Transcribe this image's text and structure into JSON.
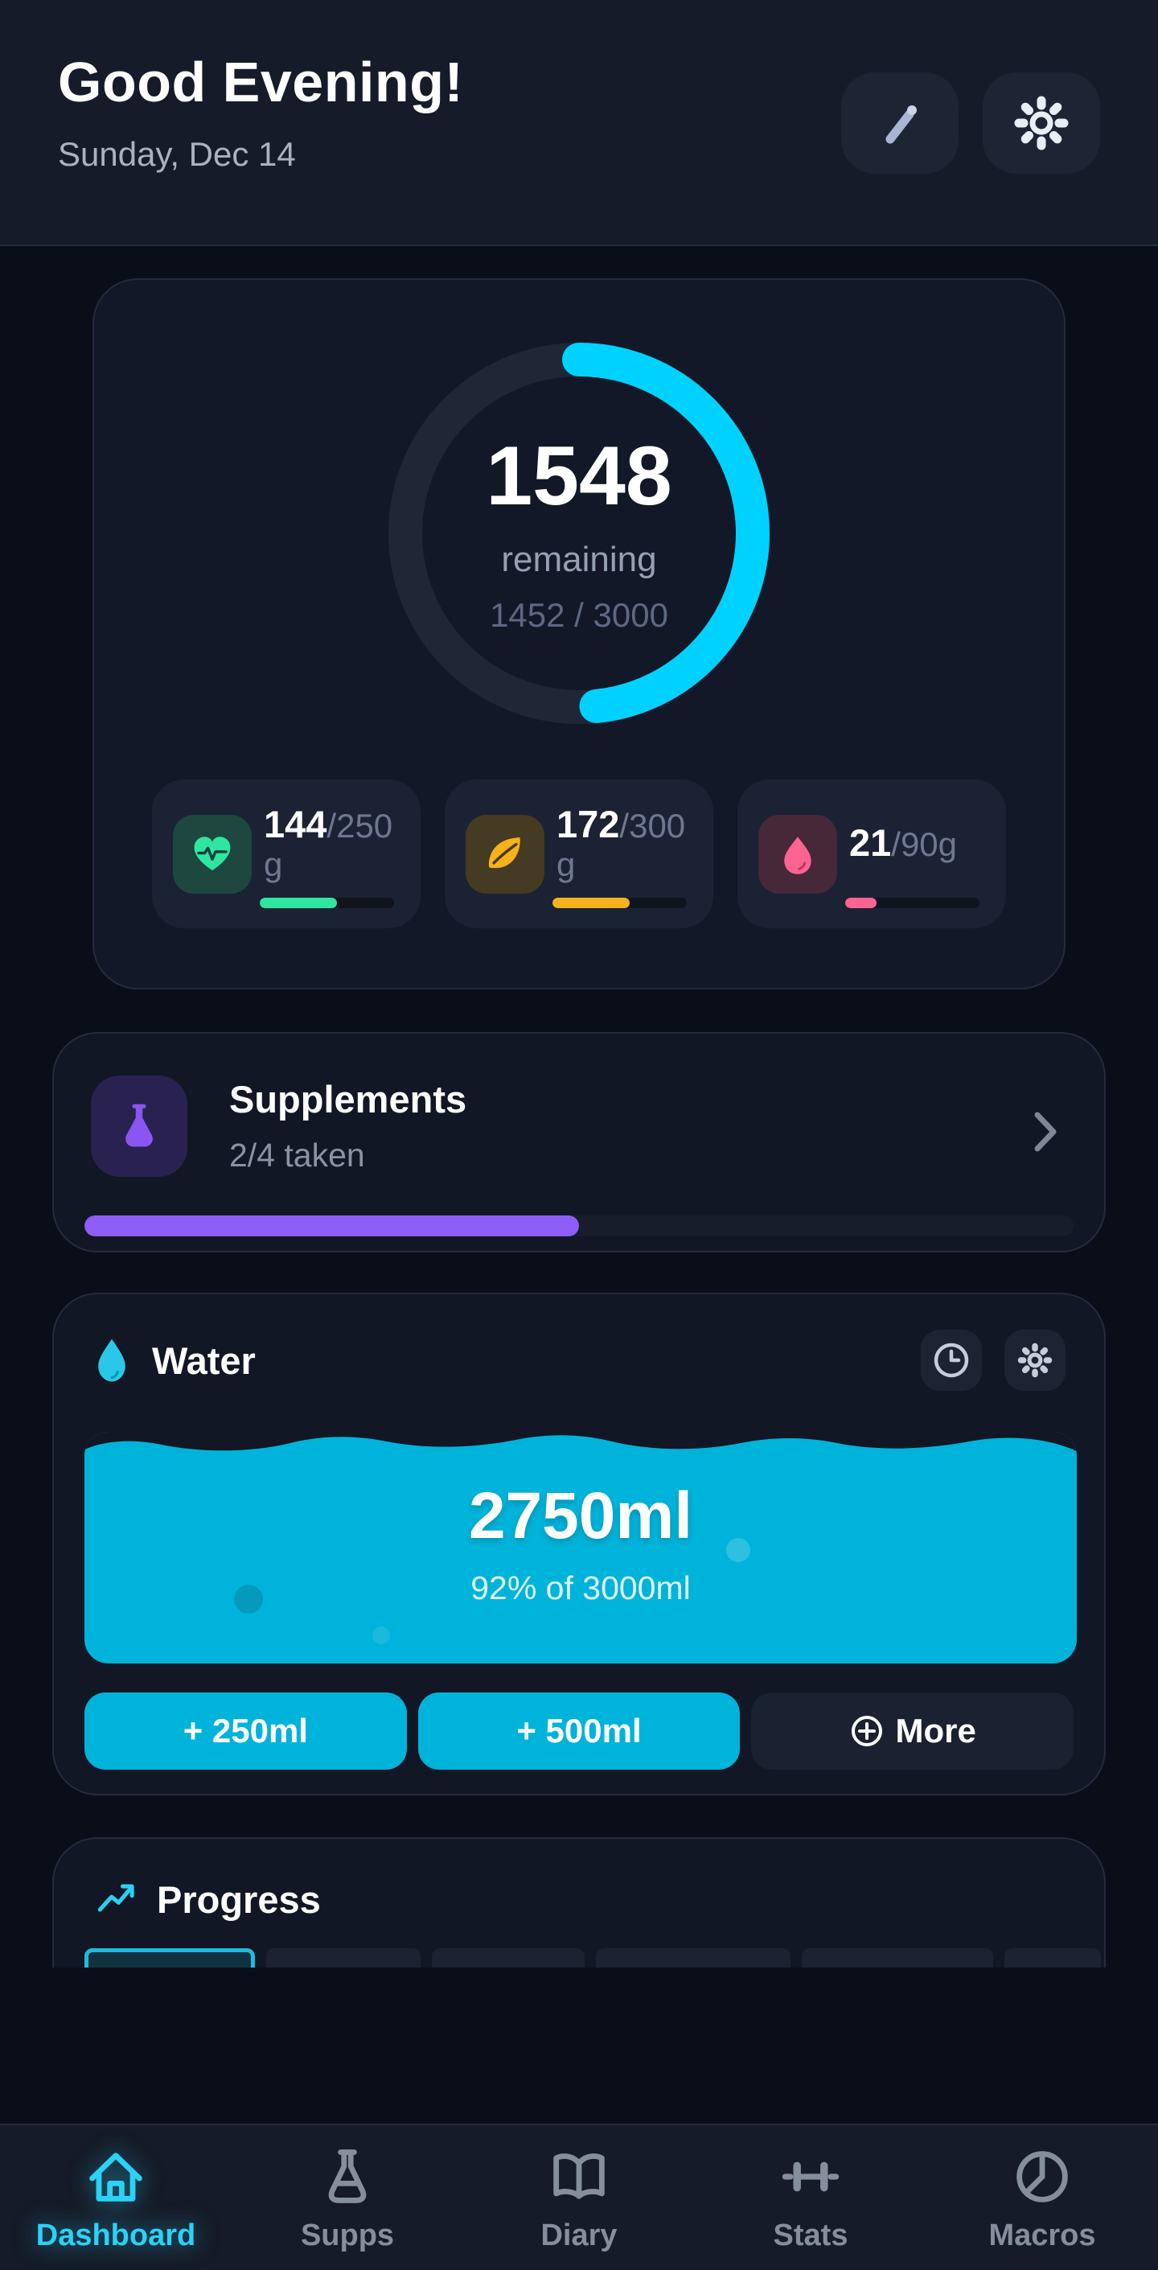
{
  "header": {
    "title": "Good Evening!",
    "date": "Sunday, Dec 14",
    "edit_icon": "pencil-icon",
    "settings_icon": "gear-icon"
  },
  "calories": {
    "remaining_value": "1548",
    "remaining_label": "remaining",
    "progress_text": "1452 / 3000",
    "percent": 48.4,
    "ring_color": "#00d2ff",
    "track_color": "#1f2737"
  },
  "macros": [
    {
      "icon": "heart-pulse-icon",
      "value": "144",
      "target": "/250 g",
      "percent": 57.6,
      "color": "#2ee6a0",
      "tile_bg": "#1d473f"
    },
    {
      "icon": "leaf-icon",
      "value": "172",
      "target": "/300 g",
      "percent": 57.3,
      "color": "#f5b21a",
      "tile_bg": "#453a22"
    },
    {
      "icon": "droplet-icon",
      "value": "21",
      "target": "/90g",
      "percent": 23.3,
      "color": "#fb6392",
      "tile_bg": "#462838"
    }
  ],
  "supplements": {
    "icon": "flask-icon",
    "title": "Supplements",
    "subtitle": "2/4 taken",
    "percent": 50,
    "bar_color": "#8e5cf7",
    "icon_color": "#8a55f0"
  },
  "water": {
    "icon": "water-drop-icon",
    "title": "Water",
    "history_icon": "clock-icon",
    "settings_icon": "gear-icon",
    "amount": "2750ml",
    "subtitle": "92% of 3000ml",
    "fill_color": "#00b3da",
    "buttons": [
      {
        "label": "+ 250ml",
        "style": "primary"
      },
      {
        "label": "+ 500ml",
        "style": "primary"
      },
      {
        "label": "More",
        "style": "dark",
        "icon": "circle-plus-icon"
      }
    ]
  },
  "progress": {
    "icon": "trending-up-icon",
    "title": "Progress",
    "accent": "#2ad0f2"
  },
  "nav": {
    "active_color": "#2bd2f6",
    "inactive_color": "#848e9d",
    "items": [
      {
        "label": "Dashboard",
        "icon": "home-icon",
        "active": true
      },
      {
        "label": "Supps",
        "icon": "flask-icon",
        "active": false
      },
      {
        "label": "Diary",
        "icon": "book-icon",
        "active": false
      },
      {
        "label": "Stats",
        "icon": "dumbbell-icon",
        "active": false
      },
      {
        "label": "Macros",
        "icon": "pie-chart-icon",
        "active": false
      }
    ]
  }
}
